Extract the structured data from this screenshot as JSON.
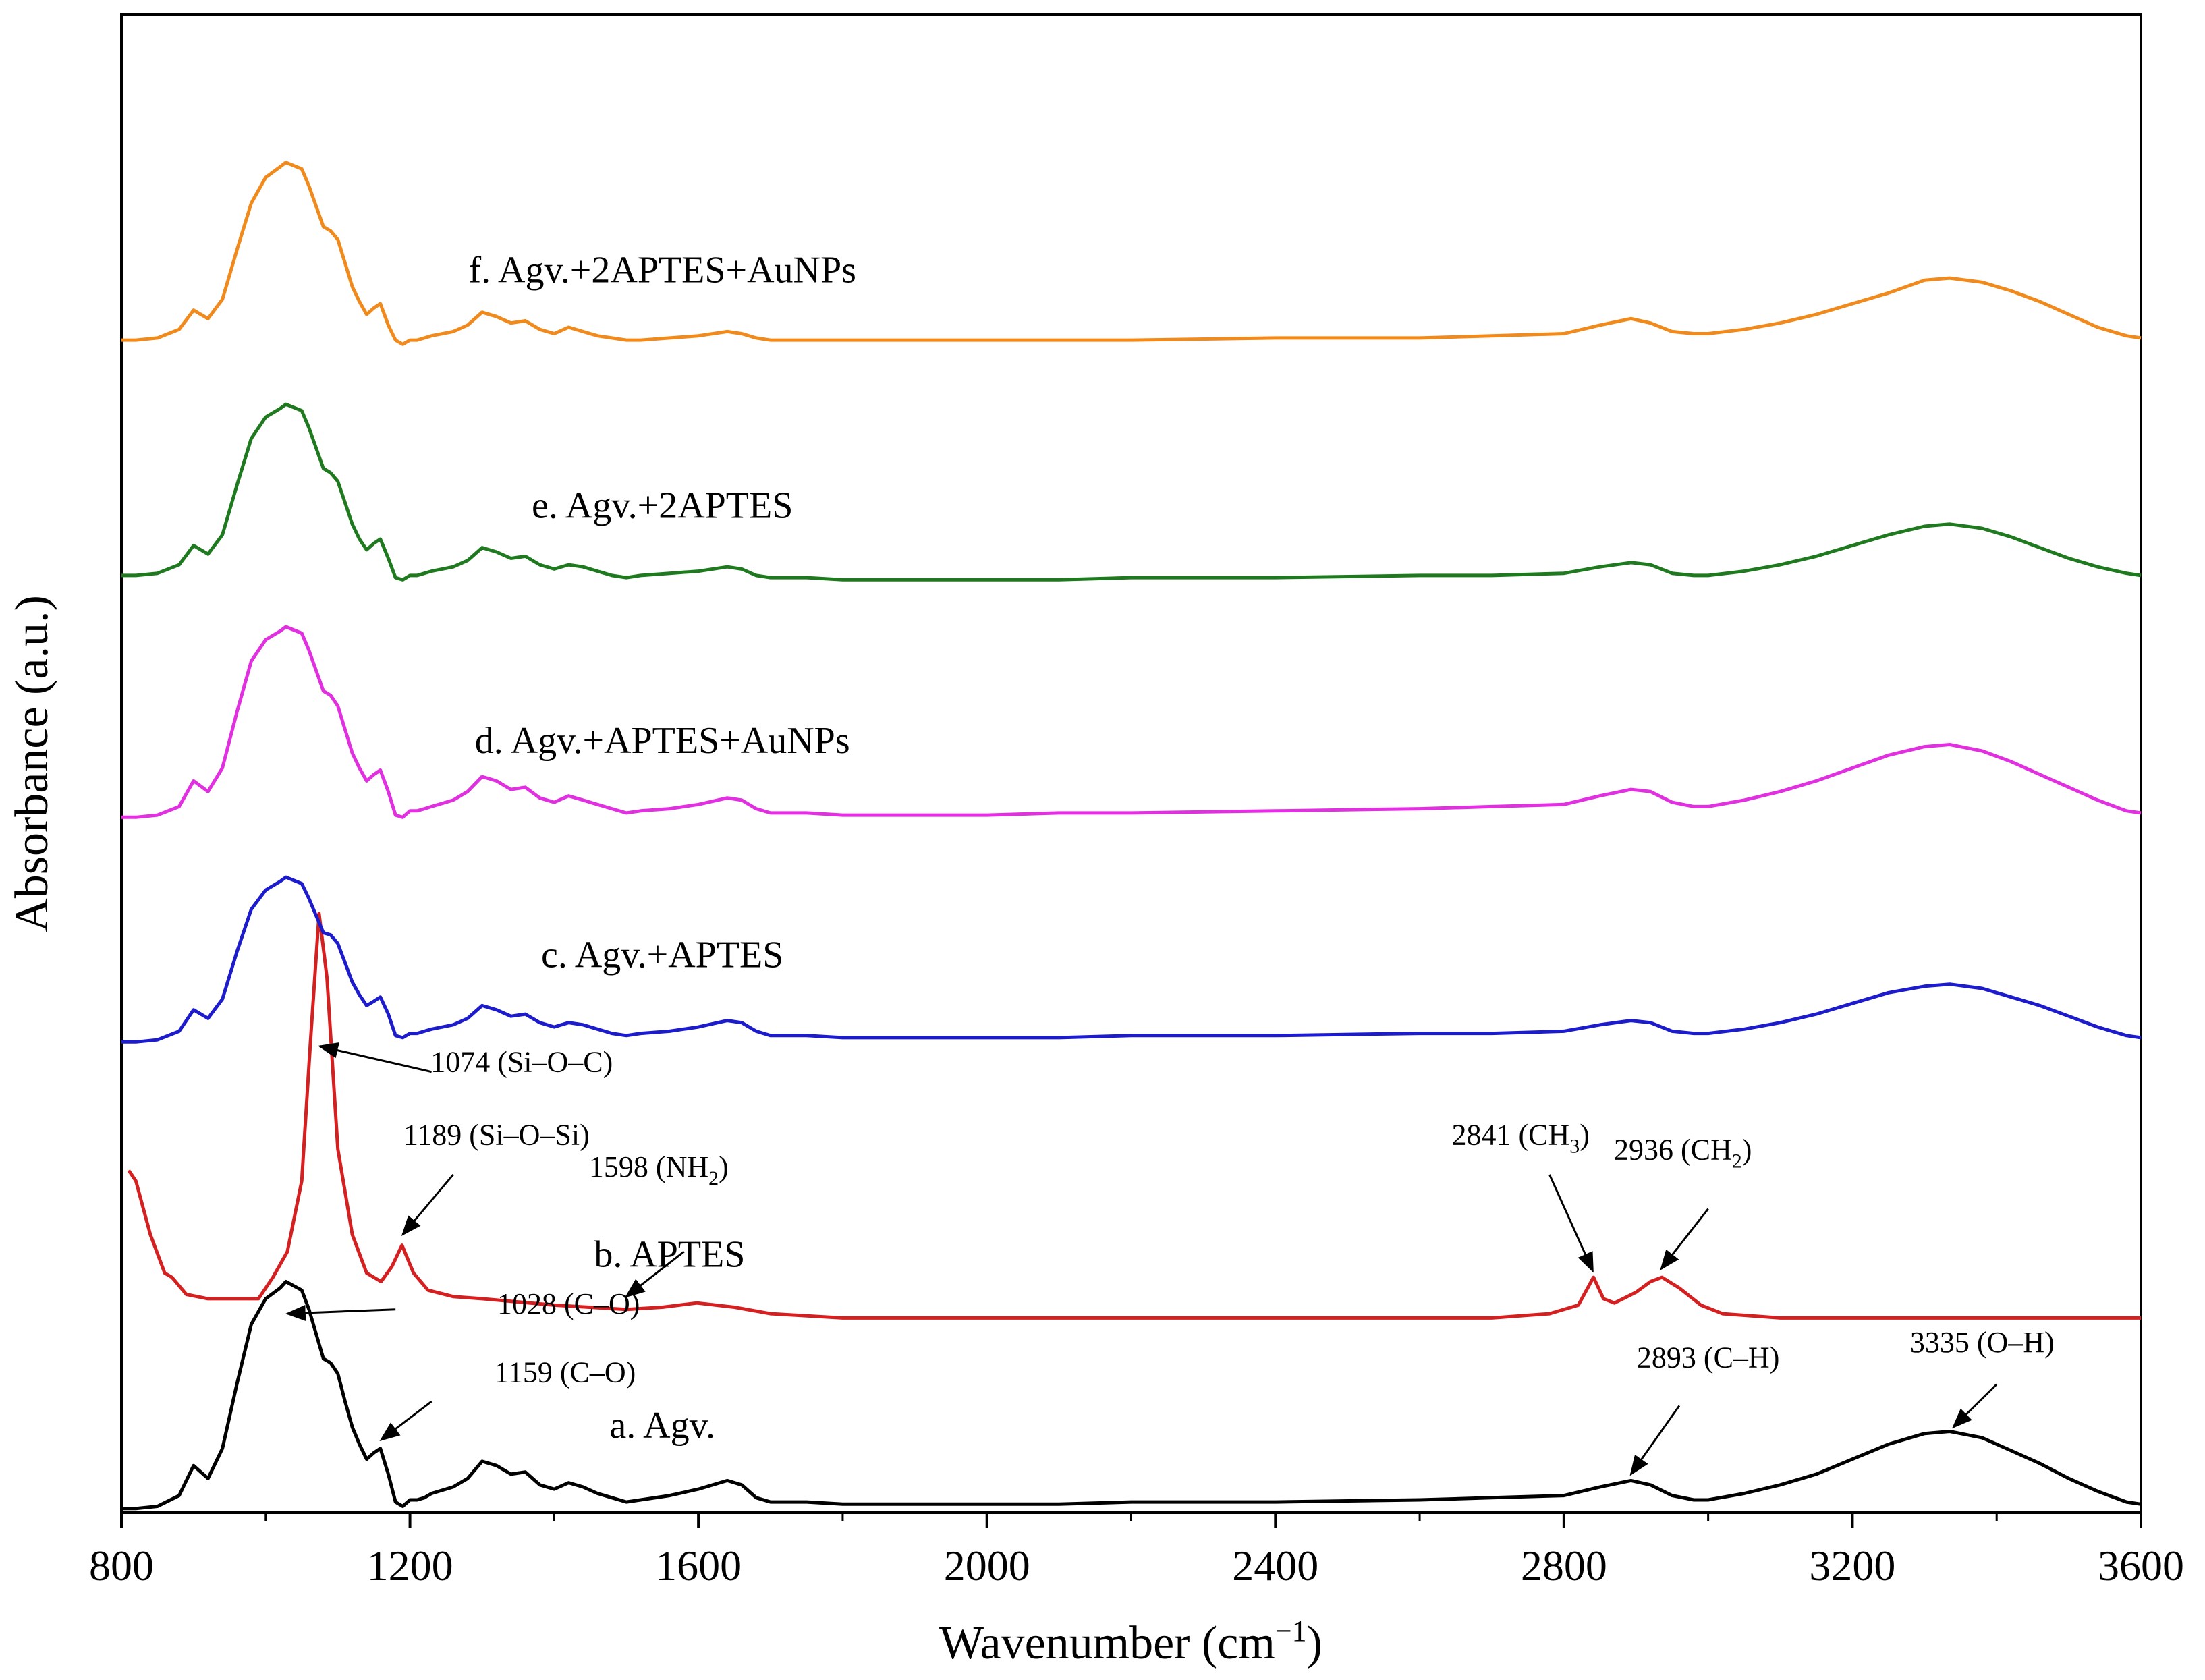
{
  "chart_data": {
    "type": "line",
    "title": "",
    "xlabel": "Wavenumber",
    "xlabel_unit": "(cm",
    "xlabel_unit_sup": "−1",
    "xlabel_unit_close": ")",
    "ylabel": "Absorbance (a.u.)",
    "xlim": [
      800,
      3600
    ],
    "ylim": [
      0,
      7
    ],
    "y_ticks_shown": false,
    "x_ticks": [
      800,
      1200,
      1600,
      2000,
      2400,
      2800,
      3200,
      3600
    ],
    "x_tick_labels": [
      "800",
      "1200",
      "1600",
      "2000",
      "2400",
      "2800",
      "3200",
      "3600"
    ],
    "series": [
      {
        "name": "a. Agv.",
        "color": "#000000",
        "label_x": 1550,
        "label_y": 0.35,
        "x": [
          800,
          820,
          850,
          880,
          900,
          920,
          940,
          960,
          980,
          1000,
          1020,
          1028,
          1050,
          1060,
          1080,
          1090,
          1100,
          1110,
          1120,
          1130,
          1140,
          1150,
          1159,
          1170,
          1180,
          1190,
          1200,
          1210,
          1220,
          1230,
          1260,
          1280,
          1300,
          1320,
          1340,
          1360,
          1380,
          1400,
          1420,
          1440,
          1460,
          1480,
          1500,
          1520,
          1560,
          1600,
          1640,
          1660,
          1680,
          1700,
          1750,
          1800,
          1900,
          2000,
          2100,
          2200,
          2400,
          2600,
          2700,
          2800,
          2850,
          2893,
          2920,
          2950,
          2980,
          3000,
          3050,
          3100,
          3150,
          3200,
          3250,
          3300,
          3335,
          3380,
          3420,
          3460,
          3500,
          3540,
          3580,
          3600
        ],
        "y": [
          0.02,
          0.02,
          0.03,
          0.08,
          0.22,
          0.16,
          0.3,
          0.6,
          0.88,
          1.0,
          1.05,
          1.08,
          1.04,
          0.95,
          0.72,
          0.7,
          0.65,
          0.52,
          0.4,
          0.32,
          0.25,
          0.28,
          0.3,
          0.18,
          0.05,
          0.03,
          0.06,
          0.06,
          0.07,
          0.09,
          0.12,
          0.16,
          0.24,
          0.22,
          0.18,
          0.19,
          0.13,
          0.11,
          0.14,
          0.12,
          0.09,
          0.07,
          0.05,
          0.06,
          0.08,
          0.11,
          0.15,
          0.13,
          0.07,
          0.05,
          0.05,
          0.04,
          0.04,
          0.04,
          0.04,
          0.05,
          0.05,
          0.06,
          0.07,
          0.08,
          0.12,
          0.15,
          0.13,
          0.08,
          0.06,
          0.06,
          0.09,
          0.13,
          0.18,
          0.25,
          0.32,
          0.37,
          0.38,
          0.35,
          0.29,
          0.23,
          0.16,
          0.1,
          0.05,
          0.04
        ]
      },
      {
        "name": "b. APTES",
        "color": "#d42020",
        "label_x": 1560,
        "label_y": 1.15,
        "x": [
          810,
          820,
          840,
          860,
          870,
          890,
          920,
          960,
          990,
          1010,
          1030,
          1050,
          1062,
          1074,
          1085,
          1100,
          1120,
          1140,
          1160,
          1175,
          1189,
          1205,
          1225,
          1260,
          1300,
          1400,
          1500,
          1550,
          1598,
          1650,
          1700,
          1800,
          1900,
          2000,
          2200,
          2400,
          2600,
          2700,
          2780,
          2820,
          2841,
          2855,
          2870,
          2900,
          2920,
          2936,
          2960,
          2990,
          3020,
          3100,
          3200,
          3300,
          3400,
          3500,
          3600
        ],
        "y": [
          1.6,
          1.55,
          1.3,
          1.12,
          1.1,
          1.02,
          1.0,
          1.0,
          1.0,
          1.1,
          1.22,
          1.55,
          2.2,
          2.8,
          2.5,
          1.7,
          1.3,
          1.12,
          1.08,
          1.15,
          1.25,
          1.12,
          1.04,
          1.01,
          1.0,
          0.97,
          0.95,
          0.96,
          0.98,
          0.96,
          0.93,
          0.91,
          0.91,
          0.91,
          0.91,
          0.91,
          0.91,
          0.91,
          0.93,
          0.97,
          1.1,
          1.0,
          0.98,
          1.03,
          1.08,
          1.1,
          1.05,
          0.97,
          0.93,
          0.91,
          0.91,
          0.91,
          0.91,
          0.91,
          0.91
        ]
      },
      {
        "name": "c. Agv.+APTES",
        "color": "#1c1ccc",
        "label_x": 1550,
        "label_y": 2.55,
        "x": [
          800,
          820,
          850,
          880,
          900,
          920,
          940,
          960,
          980,
          1000,
          1020,
          1028,
          1050,
          1060,
          1080,
          1090,
          1100,
          1110,
          1120,
          1130,
          1140,
          1150,
          1159,
          1170,
          1180,
          1190,
          1200,
          1210,
          1220,
          1230,
          1260,
          1280,
          1300,
          1320,
          1340,
          1360,
          1380,
          1400,
          1420,
          1440,
          1460,
          1480,
          1500,
          1520,
          1560,
          1600,
          1640,
          1660,
          1680,
          1700,
          1750,
          1800,
          1900,
          2000,
          2100,
          2200,
          2400,
          2600,
          2700,
          2800,
          2850,
          2893,
          2920,
          2950,
          2980,
          3000,
          3050,
          3100,
          3150,
          3200,
          3250,
          3300,
          3335,
          3380,
          3420,
          3460,
          3500,
          3540,
          3580,
          3600
        ],
        "y": [
          2.2,
          2.2,
          2.21,
          2.25,
          2.35,
          2.31,
          2.4,
          2.62,
          2.82,
          2.91,
          2.95,
          2.97,
          2.94,
          2.87,
          2.71,
          2.7,
          2.66,
          2.57,
          2.48,
          2.42,
          2.37,
          2.39,
          2.41,
          2.33,
          2.23,
          2.22,
          2.24,
          2.24,
          2.25,
          2.26,
          2.28,
          2.31,
          2.37,
          2.35,
          2.32,
          2.33,
          2.29,
          2.27,
          2.29,
          2.28,
          2.26,
          2.24,
          2.23,
          2.24,
          2.25,
          2.27,
          2.3,
          2.29,
          2.25,
          2.23,
          2.23,
          2.22,
          2.22,
          2.22,
          2.22,
          2.23,
          2.23,
          2.24,
          2.24,
          2.25,
          2.28,
          2.3,
          2.29,
          2.25,
          2.24,
          2.24,
          2.26,
          2.29,
          2.33,
          2.38,
          2.43,
          2.46,
          2.47,
          2.45,
          2.41,
          2.37,
          2.32,
          2.27,
          2.23,
          2.22
        ]
      },
      {
        "name": "d. Agv.+APTES+AuNPs",
        "color": "#e030e0",
        "label_x": 1550,
        "label_y": 3.55,
        "x": [
          800,
          820,
          850,
          880,
          900,
          920,
          940,
          960,
          980,
          1000,
          1020,
          1028,
          1050,
          1060,
          1080,
          1090,
          1100,
          1110,
          1120,
          1130,
          1140,
          1150,
          1159,
          1170,
          1180,
          1190,
          1200,
          1210,
          1220,
          1230,
          1260,
          1280,
          1300,
          1320,
          1340,
          1360,
          1380,
          1400,
          1420,
          1440,
          1460,
          1480,
          1500,
          1520,
          1560,
          1600,
          1640,
          1660,
          1680,
          1700,
          1750,
          1800,
          1900,
          2000,
          2100,
          2200,
          2400,
          2600,
          2700,
          2800,
          2850,
          2893,
          2920,
          2950,
          2980,
          3000,
          3050,
          3100,
          3150,
          3200,
          3250,
          3300,
          3335,
          3380,
          3420,
          3460,
          3500,
          3540,
          3580,
          3600
        ],
        "y": [
          3.25,
          3.25,
          3.26,
          3.3,
          3.42,
          3.37,
          3.48,
          3.74,
          3.98,
          4.08,
          4.12,
          4.14,
          4.11,
          4.03,
          3.84,
          3.82,
          3.77,
          3.66,
          3.55,
          3.48,
          3.42,
          3.45,
          3.47,
          3.37,
          3.26,
          3.25,
          3.28,
          3.28,
          3.29,
          3.3,
          3.33,
          3.37,
          3.44,
          3.42,
          3.38,
          3.39,
          3.34,
          3.32,
          3.35,
          3.33,
          3.31,
          3.29,
          3.27,
          3.28,
          3.29,
          3.31,
          3.34,
          3.33,
          3.29,
          3.27,
          3.27,
          3.26,
          3.26,
          3.26,
          3.27,
          3.27,
          3.28,
          3.29,
          3.3,
          3.31,
          3.35,
          3.38,
          3.37,
          3.32,
          3.3,
          3.3,
          3.33,
          3.37,
          3.42,
          3.48,
          3.54,
          3.58,
          3.59,
          3.56,
          3.51,
          3.45,
          3.39,
          3.33,
          3.28,
          3.27
        ]
      },
      {
        "name": "e. Agv.+2APTES",
        "color": "#1f7a1f",
        "label_x": 1550,
        "label_y": 4.65,
        "x": [
          800,
          820,
          850,
          880,
          900,
          920,
          940,
          960,
          980,
          1000,
          1020,
          1028,
          1050,
          1060,
          1080,
          1090,
          1100,
          1110,
          1120,
          1130,
          1140,
          1150,
          1159,
          1170,
          1180,
          1190,
          1200,
          1210,
          1220,
          1230,
          1260,
          1280,
          1300,
          1320,
          1340,
          1360,
          1380,
          1400,
          1420,
          1440,
          1460,
          1480,
          1500,
          1520,
          1560,
          1600,
          1640,
          1660,
          1680,
          1700,
          1750,
          1800,
          1900,
          2000,
          2100,
          2200,
          2400,
          2600,
          2700,
          2800,
          2850,
          2893,
          2920,
          2950,
          2980,
          3000,
          3050,
          3100,
          3150,
          3200,
          3250,
          3300,
          3335,
          3380,
          3420,
          3460,
          3500,
          3540,
          3580,
          3600
        ],
        "y": [
          4.38,
          4.38,
          4.39,
          4.43,
          4.52,
          4.48,
          4.57,
          4.8,
          5.02,
          5.12,
          5.16,
          5.18,
          5.15,
          5.07,
          4.88,
          4.86,
          4.82,
          4.72,
          4.62,
          4.55,
          4.5,
          4.53,
          4.55,
          4.46,
          4.37,
          4.36,
          4.38,
          4.38,
          4.39,
          4.4,
          4.42,
          4.45,
          4.51,
          4.49,
          4.46,
          4.47,
          4.43,
          4.41,
          4.43,
          4.42,
          4.4,
          4.38,
          4.37,
          4.38,
          4.39,
          4.4,
          4.42,
          4.41,
          4.38,
          4.37,
          4.37,
          4.36,
          4.36,
          4.36,
          4.36,
          4.37,
          4.37,
          4.38,
          4.38,
          4.39,
          4.42,
          4.44,
          4.43,
          4.39,
          4.38,
          4.38,
          4.4,
          4.43,
          4.47,
          4.52,
          4.57,
          4.61,
          4.62,
          4.6,
          4.56,
          4.51,
          4.46,
          4.42,
          4.39,
          4.38
        ]
      },
      {
        "name": "f. Agv.+2APTES+AuNPs",
        "color": "#f08a1c",
        "label_x": 1550,
        "label_y": 5.75,
        "x": [
          800,
          820,
          850,
          880,
          900,
          920,
          940,
          960,
          980,
          1000,
          1020,
          1028,
          1050,
          1060,
          1080,
          1090,
          1100,
          1110,
          1120,
          1130,
          1140,
          1150,
          1159,
          1170,
          1180,
          1190,
          1200,
          1210,
          1220,
          1230,
          1260,
          1280,
          1300,
          1320,
          1340,
          1360,
          1380,
          1400,
          1420,
          1440,
          1460,
          1480,
          1500,
          1520,
          1560,
          1600,
          1640,
          1660,
          1680,
          1700,
          1750,
          1800,
          1900,
          2000,
          2100,
          2200,
          2400,
          2600,
          2700,
          2800,
          2850,
          2893,
          2920,
          2950,
          2980,
          3000,
          3050,
          3100,
          3150,
          3200,
          3250,
          3300,
          3335,
          3380,
          3420,
          3460,
          3500,
          3540,
          3580,
          3600
        ],
        "y": [
          5.48,
          5.48,
          5.49,
          5.53,
          5.62,
          5.58,
          5.67,
          5.9,
          6.12,
          6.24,
          6.29,
          6.31,
          6.28,
          6.2,
          6.01,
          5.99,
          5.95,
          5.84,
          5.73,
          5.66,
          5.6,
          5.63,
          5.65,
          5.55,
          5.48,
          5.46,
          5.48,
          5.48,
          5.49,
          5.5,
          5.52,
          5.55,
          5.61,
          5.59,
          5.56,
          5.57,
          5.53,
          5.51,
          5.54,
          5.52,
          5.5,
          5.49,
          5.48,
          5.48,
          5.49,
          5.5,
          5.52,
          5.51,
          5.49,
          5.48,
          5.48,
          5.48,
          5.48,
          5.48,
          5.48,
          5.48,
          5.49,
          5.49,
          5.5,
          5.51,
          5.55,
          5.58,
          5.56,
          5.52,
          5.51,
          5.51,
          5.53,
          5.56,
          5.6,
          5.65,
          5.7,
          5.76,
          5.77,
          5.75,
          5.71,
          5.66,
          5.6,
          5.54,
          5.5,
          5.49
        ]
      }
    ],
    "annotations": [
      {
        "text": "1028 (C–O)",
        "sub": "",
        "tail": "",
        "text_x": 1420,
        "text_y": 0.93,
        "tip_x": 1030,
        "tip_y": 0.93,
        "from_x": 1180,
        "from_y": 0.95
      },
      {
        "text": "1159 (C–O)",
        "sub": "",
        "tail": "",
        "text_x": 1415,
        "text_y": 0.61,
        "tip_x": 1160,
        "tip_y": 0.34,
        "from_x": 1230,
        "from_y": 0.52
      },
      {
        "text": "1074 (Si–O–C)",
        "sub": "",
        "tail": "",
        "text_x": 1355,
        "text_y": 2.06,
        "tip_x": 1075,
        "tip_y": 2.18,
        "from_x": 1230,
        "from_y": 2.06
      },
      {
        "text": "1189 (Si–O–Si)",
        "sub": "",
        "tail": "",
        "text_x": 1320,
        "text_y": 1.72,
        "tip_x": 1190,
        "tip_y": 1.3,
        "from_x": 1260,
        "from_y": 1.58
      },
      {
        "text": "1598 (NH",
        "sub": "2",
        "tail": ")",
        "text_x": 1545,
        "text_y": 1.57,
        "tip_x": 1500,
        "tip_y": 1.01,
        "from_x": 1580,
        "from_y": 1.22
      },
      {
        "text": "2841 (CH",
        "sub": "3",
        "tail": ")",
        "text_x": 2740,
        "text_y": 1.72,
        "tip_x": 2840,
        "tip_y": 1.13,
        "from_x": 2780,
        "from_y": 1.58
      },
      {
        "text": "2936 (CH",
        "sub": "2",
        "tail": ")",
        "text_x": 2965,
        "text_y": 1.65,
        "tip_x": 2935,
        "tip_y": 1.14,
        "from_x": 3000,
        "from_y": 1.42
      },
      {
        "text": "2893 (C–H)",
        "sub": "",
        "tail": "",
        "text_x": 3000,
        "text_y": 0.68,
        "tip_x": 2893,
        "tip_y": 0.18,
        "from_x": 2960,
        "from_y": 0.5
      },
      {
        "text": "3335 (O–H)",
        "sub": "",
        "tail": "",
        "text_x": 3380,
        "text_y": 0.75,
        "tip_x": 3340,
        "tip_y": 0.4,
        "from_x": 3400,
        "from_y": 0.6
      }
    ]
  }
}
